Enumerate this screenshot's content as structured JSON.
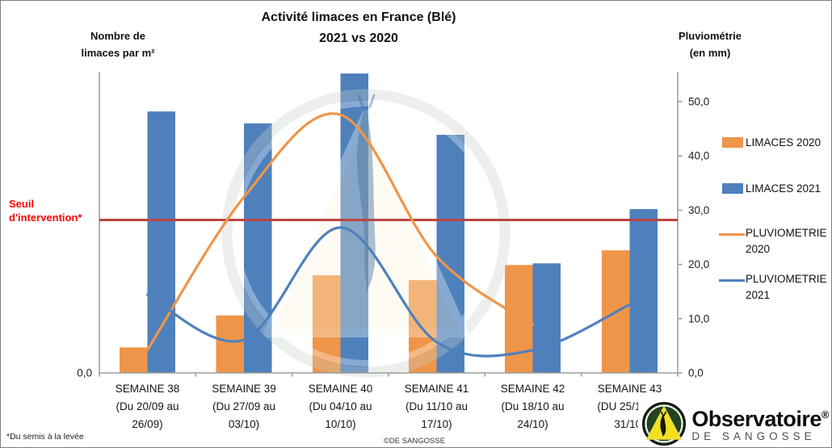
{
  "title": {
    "line1": "Activité limaces en France (Blé)",
    "line2": "2021 vs 2020"
  },
  "left_axis_header": {
    "line1": "Nombre de",
    "line2": "limaces par m²"
  },
  "right_axis_header": {
    "line1": "Pluviométrie",
    "line2": "(en mm)"
  },
  "threshold_label": {
    "line1": "Seuil",
    "line2": "d'intervention*"
  },
  "footnote": "*Du semis à la levée",
  "copyright": "©DE SANGOSSE",
  "logo": {
    "name": "Observatoire",
    "registered": "®",
    "subtitle": "DE SANGOSSE"
  },
  "colors": {
    "orange": "#EF9549",
    "blue": "#4E81BC",
    "threshold_line": "#B94641",
    "threshold_text": "#FF0000",
    "axis": "#9e9e9e",
    "text": "#151515"
  },
  "chart_data": {
    "type": "combo-bar-line",
    "title": "Activité limaces en France (Blé) 2021 vs 2020",
    "categories": [
      [
        "SEMAINE 38",
        "(Du 20/09 au",
        "26/09)"
      ],
      [
        "SEMAINE 39",
        "(Du 27/09 au",
        "03/10)"
      ],
      [
        "SEMAINE 40",
        "(Du 04/10 au",
        "10/10)"
      ],
      [
        "SEMAINE 41",
        "(Du 11/10 au",
        "17/10)"
      ],
      [
        "SEMAINE 42",
        "(Du 18/10 au",
        "24/10)"
      ],
      [
        "SEMAINE 43",
        "(DU 25/10 au",
        "31/10)"
      ]
    ],
    "left_axis": {
      "label": "Nombre de limaces par m²",
      "visible_ticks": [
        "0,0"
      ]
    },
    "right_axis": {
      "label": "Pluviométrie (en mm)",
      "ticks": [
        "0,0",
        "10,0",
        "20,0",
        "30,0",
        "40,0",
        "50,0"
      ],
      "tick_values": [
        0,
        10,
        20,
        30,
        40,
        50
      ],
      "range": [
        0,
        55.5
      ],
      "grid": false
    },
    "series": [
      {
        "name": "LIMACES 2020",
        "type": "bar",
        "color": "#EF9549",
        "values": [
          4.7,
          10.6,
          18.0,
          17.1,
          19.9,
          22.6
        ]
      },
      {
        "name": "LIMACES 2021",
        "type": "bar",
        "color": "#4E81BC",
        "values": [
          48.2,
          46.0,
          55.2,
          43.9,
          20.2,
          30.2
        ]
      },
      {
        "name": "PLUVIOMETRIE 2020",
        "type": "line",
        "color": "#EF9549",
        "values": [
          4.2,
          32.4,
          47.6,
          21.5,
          8.9,
          null
        ]
      },
      {
        "name": "PLUVIOMETRIE 2021",
        "type": "line",
        "color": "#4E81BC",
        "values": [
          14.4,
          6.1,
          26.8,
          5.7,
          4.2,
          12.6
        ]
      }
    ],
    "threshold": {
      "label": "Seuil d'intervention*",
      "value": 28.2,
      "color": "#B94641"
    },
    "legend": [
      {
        "lines": [
          "LIMACES 2020"
        ],
        "swatch": "bar",
        "color": "#EF9549"
      },
      {
        "lines": [
          "LIMACES 2021"
        ],
        "swatch": "bar",
        "color": "#4E81BC"
      },
      {
        "lines": [
          "PLUVIOMETRIE",
          "2020"
        ],
        "swatch": "line",
        "color": "#EF9549"
      },
      {
        "lines": [
          "PLUVIOMETRIE",
          "2021"
        ],
        "swatch": "line",
        "color": "#4E81BC"
      }
    ],
    "legend_position": "right"
  }
}
